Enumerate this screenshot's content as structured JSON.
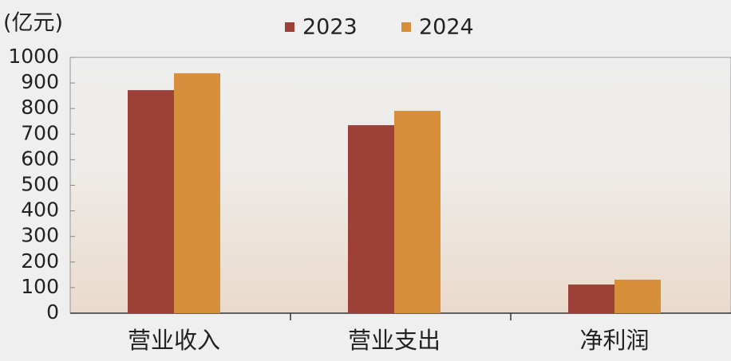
{
  "chart_data": {
    "type": "bar",
    "y_label": "(亿元)",
    "categories": [
      "营业收入",
      "营业支出",
      "净利润"
    ],
    "series": [
      {
        "name": "2023",
        "color": "#9d4038",
        "values": [
          872,
          735,
          112
        ]
      },
      {
        "name": "2024",
        "color": "#d88f3a",
        "values": [
          938,
          791,
          131
        ]
      }
    ],
    "ylim": [
      0,
      1000
    ],
    "yticks": [
      0,
      100,
      200,
      300,
      400,
      500,
      600,
      700,
      800,
      900,
      1000
    ],
    "grid": false
  }
}
